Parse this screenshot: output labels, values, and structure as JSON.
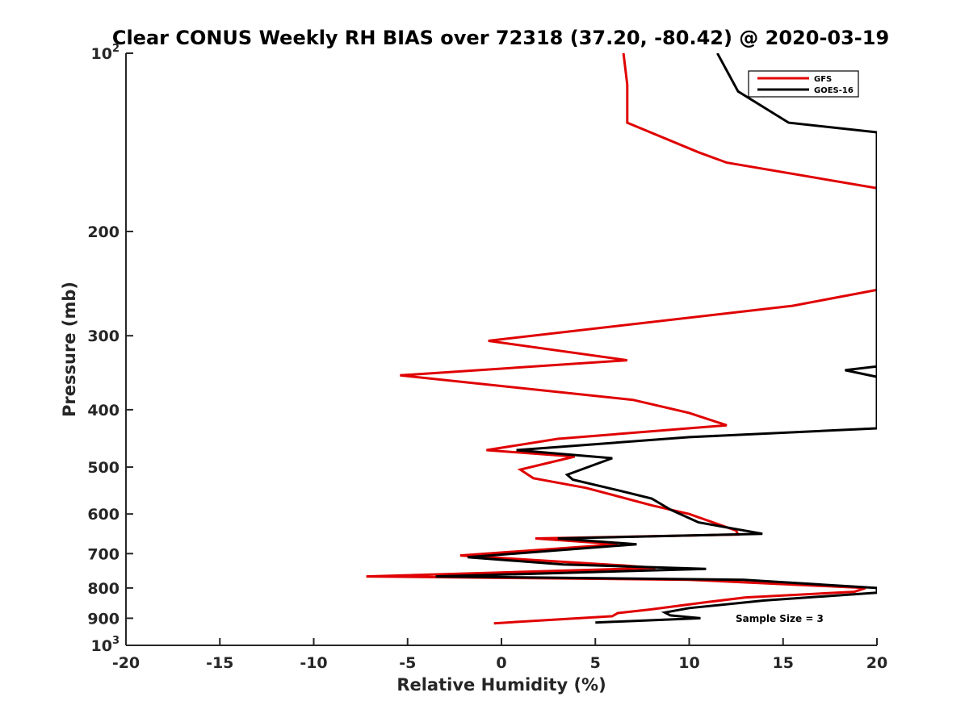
{
  "chart_data": {
    "type": "line",
    "title": "Clear CONUS Weekly RH BIAS over 72318 (37.20, -80.42) @ 2020-03-19",
    "xlabel": "Relative Humidity (%)",
    "ylabel": "Pressure (mb)",
    "xlim": [
      -20,
      20
    ],
    "ylim": [
      100,
      1000
    ],
    "y_scale": "log",
    "y_reversed": true,
    "grid": false,
    "legend_position": "top-right",
    "x_ticks": [
      "-20",
      "-15",
      "-10",
      "-5",
      "0",
      "5",
      "10",
      "15",
      "20"
    ],
    "y_ticks": [
      {
        "value": 100,
        "base": "10",
        "exp": "2"
      },
      {
        "value": 200,
        "label": "200"
      },
      {
        "value": 300,
        "label": "300"
      },
      {
        "value": 400,
        "label": "400"
      },
      {
        "value": 500,
        "label": "500"
      },
      {
        "value": 600,
        "label": "600"
      },
      {
        "value": 700,
        "label": "700"
      },
      {
        "value": 800,
        "label": "800"
      },
      {
        "value": 900,
        "label": "900"
      },
      {
        "value": 1000,
        "base": "10",
        "exp": "3"
      }
    ],
    "annotation": "Sample Size = 3",
    "series": [
      {
        "name": "GFS",
        "color": "#e00000",
        "points": [
          [
            6.5,
            100
          ],
          [
            6.7,
            113
          ],
          [
            6.7,
            131
          ],
          [
            10.5,
            147
          ],
          [
            12,
            153
          ],
          [
            20,
            169
          ],
          [
            20,
            251
          ],
          [
            15.5,
            267
          ],
          [
            -0.7,
            306
          ],
          [
            6.7,
            330
          ],
          [
            -5.4,
            350
          ],
          [
            7,
            385
          ],
          [
            10,
            405
          ],
          [
            12,
            425
          ],
          [
            3,
            448
          ],
          [
            -0.8,
            468
          ],
          [
            3.9,
            480
          ],
          [
            1,
            505
          ],
          [
            1.7,
            522
          ],
          [
            4.5,
            542
          ],
          [
            8,
            580
          ],
          [
            10,
            600
          ],
          [
            12.5,
            640
          ],
          [
            12.6,
            650
          ],
          [
            1.8,
            660
          ],
          [
            6.2,
            675
          ],
          [
            -2.2,
            705
          ],
          [
            6.5,
            733
          ],
          [
            8.2,
            740
          ],
          [
            -7.2,
            765
          ],
          [
            10,
            775
          ],
          [
            19.4,
            800
          ],
          [
            18.8,
            812
          ],
          [
            13,
            830
          ],
          [
            11,
            845
          ],
          [
            7.9,
            870
          ],
          [
            6.2,
            882
          ],
          [
            5.9,
            893
          ],
          [
            -0.4,
            918
          ]
        ]
      },
      {
        "name": "GOES-16",
        "color": "#000000",
        "points": [
          [
            11.5,
            100
          ],
          [
            12.6,
            116
          ],
          [
            15.3,
            131
          ],
          [
            20,
            136
          ],
          [
            20,
            352
          ],
          [
            18.3,
            343
          ],
          [
            20,
            338
          ],
          [
            20,
            430
          ],
          [
            10,
            445
          ],
          [
            0.8,
            468
          ],
          [
            5.9,
            483
          ],
          [
            3.5,
            515
          ],
          [
            3.8,
            525
          ],
          [
            6.5,
            550
          ],
          [
            8,
            565
          ],
          [
            9,
            590
          ],
          [
            10.5,
            620
          ],
          [
            13.9,
            648
          ],
          [
            3,
            660
          ],
          [
            7.2,
            675
          ],
          [
            -1.8,
            710
          ],
          [
            3.3,
            730
          ],
          [
            10.9,
            743
          ],
          [
            -3.5,
            765
          ],
          [
            12.9,
            775
          ],
          [
            20,
            800
          ],
          [
            20,
            815
          ],
          [
            14,
            840
          ],
          [
            10,
            865
          ],
          [
            8.7,
            880
          ],
          [
            9,
            890
          ],
          [
            10.6,
            900
          ],
          [
            5,
            915
          ]
        ]
      }
    ]
  }
}
